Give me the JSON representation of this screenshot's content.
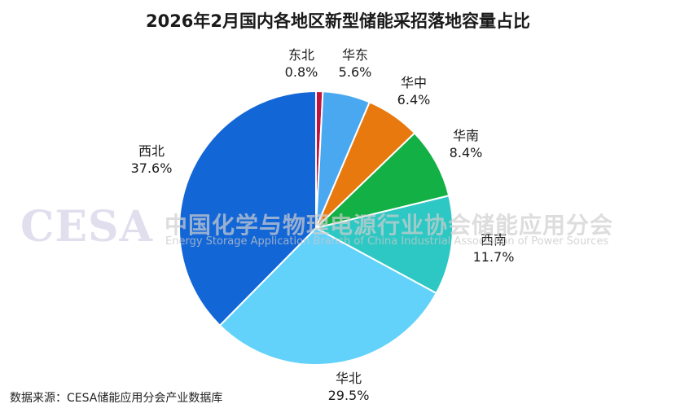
{
  "chart_data": {
    "type": "pie",
    "title": "2026年2月国内各地区新型储能采招落地容量占比",
    "unit": "%",
    "slices": [
      {
        "name": "东北",
        "value": 0.8,
        "label": "0.8%",
        "color": "#c0143c"
      },
      {
        "name": "华东",
        "value": 5.6,
        "label": "5.6%",
        "color": "#4aa8f0"
      },
      {
        "name": "华中",
        "value": 6.4,
        "label": "6.4%",
        "color": "#e8790e"
      },
      {
        "name": "华南",
        "value": 8.4,
        "label": "8.4%",
        "color": "#12b045"
      },
      {
        "name": "西南",
        "value": 11.7,
        "label": "11.7%",
        "color": "#2ec8c4"
      },
      {
        "name": "华北",
        "value": 29.5,
        "label": "29.5%",
        "color": "#62d2fb"
      },
      {
        "name": "西北",
        "value": 37.6,
        "label": "37.6%",
        "color": "#1366d6"
      }
    ]
  },
  "source": "数据来源：CESA储能应用分会产业数据库",
  "watermark": {
    "logo": "CESA",
    "cn": "中国化学与物理电源行业协会储能应用分会",
    "en": "Energy Storage Application Branch of China Industrial Association of Power Sources"
  }
}
